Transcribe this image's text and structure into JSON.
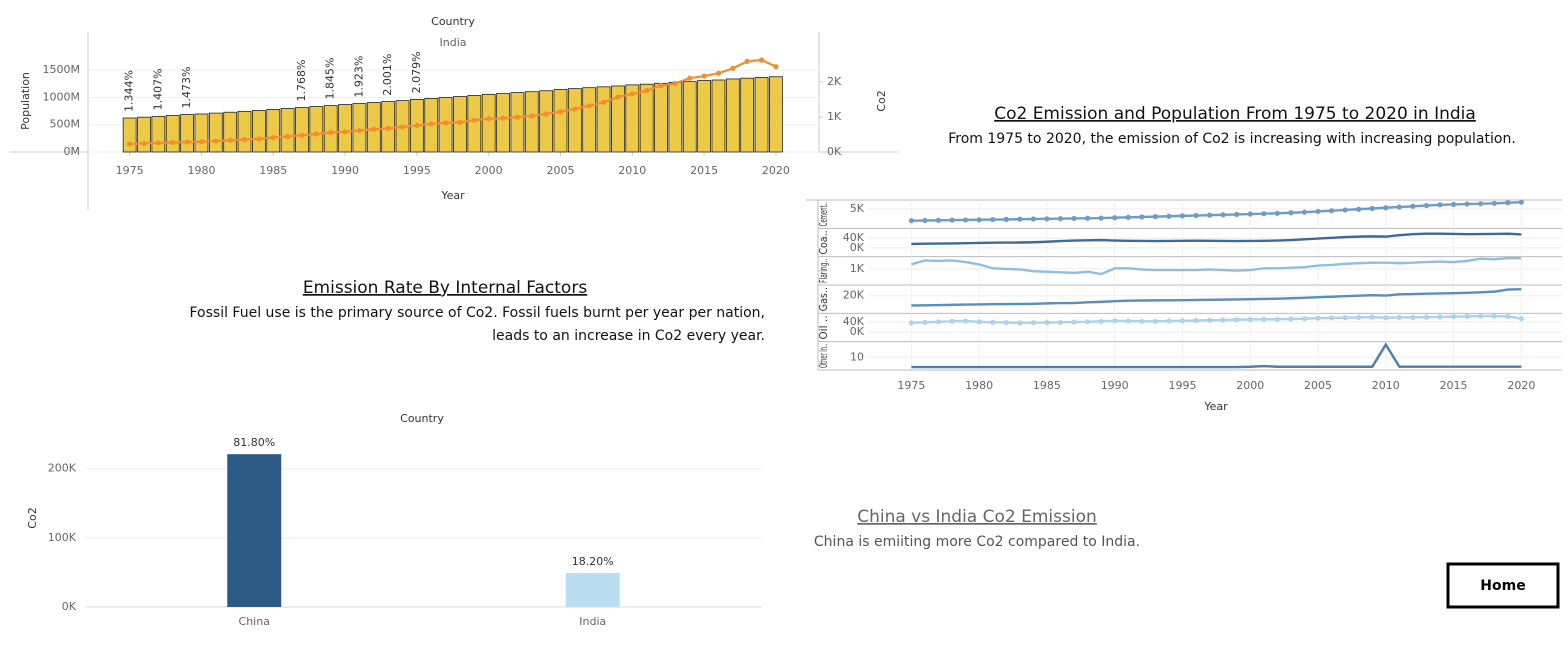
{
  "headline": {
    "title": "Co2 Emission and Population From 1975 to 2020 in India",
    "text": "From 1975 to 2020, the emission of Co2 is increasing with increasing population."
  },
  "factors": {
    "title": "Emission Rate By Internal Factors",
    "lines": [
      "Fossil Fuel use is the primary source of Co2. Fossil fuels burnt per year per nation,",
      "leads to an increase in Co2 every year."
    ]
  },
  "comparison": {
    "title": "China vs India Co2 Emission",
    "text": "China is emiiting more Co2 compared to India."
  },
  "home_button": "Home",
  "chart_data": [
    {
      "type": "combo",
      "title": "Country",
      "subtitle": "India",
      "x_label": "Year",
      "y_label": "Population",
      "y2_label": "Co2",
      "x": [
        1975,
        1976,
        1977,
        1978,
        1979,
        1980,
        1981,
        1982,
        1983,
        1984,
        1985,
        1986,
        1987,
        1988,
        1989,
        1990,
        1991,
        1992,
        1993,
        1994,
        1995,
        1996,
        1997,
        1998,
        1999,
        2000,
        2001,
        2002,
        2003,
        2004,
        2005,
        2006,
        2007,
        2008,
        2009,
        2010,
        2011,
        2012,
        2013,
        2014,
        2015,
        2016,
        2017,
        2018,
        2019,
        2020
      ],
      "series": [
        {
          "name": "Population",
          "type": "bar",
          "color": "#edc948",
          "values": [
            623,
            638,
            654,
            670,
            687,
            697,
            713,
            729,
            745,
            761,
            781,
            798,
            816,
            834,
            852,
            870,
            888,
            906,
            924,
            942,
            964,
            982,
            1000,
            1018,
            1036,
            1057,
            1071,
            1089,
            1106,
            1123,
            1147,
            1162,
            1179,
            1195,
            1211,
            1231,
            1243,
            1259,
            1275,
            1290,
            1310,
            1320,
            1339,
            1353,
            1367,
            1380
          ]
        },
        {
          "name": "Co2",
          "type": "line",
          "axis": "y2",
          "color": "#f28e2b",
          "values": [
            230,
            245,
            260,
            270,
            285,
            295,
            315,
            335,
            355,
            375,
            415,
            445,
            480,
            515,
            560,
            580,
            615,
            650,
            675,
            715,
            760,
            800,
            835,
            850,
            910,
            950,
            965,
            995,
            1030,
            1090,
            1150,
            1230,
            1320,
            1420,
            1570,
            1660,
            1750,
            1900,
            1960,
            2110,
            2170,
            2250,
            2390,
            2590,
            2630,
            2440
          ]
        }
      ],
      "annotations": [
        {
          "x": 1975,
          "value": 1.344,
          "label": "1.344%"
        },
        {
          "x": 1977,
          "value": 1.407,
          "label": "1.407%"
        },
        {
          "x": 1979,
          "value": 1.473,
          "label": "1.473%"
        },
        {
          "x": 1987,
          "value": 1.768,
          "label": "1.768%"
        },
        {
          "x": 1989,
          "value": 1.845,
          "label": "1.845%"
        },
        {
          "x": 1991,
          "value": 1.923,
          "label": "1.923%"
        },
        {
          "x": 1993,
          "value": 2.001,
          "label": "2.001%"
        },
        {
          "x": 1995,
          "value": 2.079,
          "label": "2.079%"
        }
      ],
      "xlim": [
        1972.1,
        2023
      ],
      "xticks": [
        1975,
        1980,
        1985,
        1990,
        1995,
        2000,
        2005,
        2010,
        2015,
        2020
      ],
      "ylim": [
        0,
        2200
      ],
      "yticks": [
        {
          "value": 0,
          "label": "0M"
        },
        {
          "value": 500,
          "label": "500M"
        },
        {
          "value": 1000,
          "label": "1000M"
        },
        {
          "value": 1500,
          "label": "1500M"
        }
      ],
      "y2lim": [
        0,
        3430
      ],
      "y2ticks": [
        {
          "value": 0,
          "label": "0K"
        },
        {
          "value": 1000,
          "label": "1K"
        },
        {
          "value": 2000,
          "label": "2K"
        }
      ],
      "grid": true
    },
    {
      "type": "line",
      "x_label": "Year",
      "x": [
        1975,
        1976,
        1977,
        1978,
        1979,
        1980,
        1981,
        1982,
        1983,
        1984,
        1985,
        1986,
        1987,
        1988,
        1989,
        1990,
        1991,
        1992,
        1993,
        1994,
        1995,
        1996,
        1997,
        1998,
        1999,
        2000,
        2001,
        2002,
        2003,
        2004,
        2005,
        2006,
        2007,
        2008,
        2009,
        2010,
        2011,
        2012,
        2013,
        2014,
        2015,
        2016,
        2017,
        2018,
        2019,
        2020
      ],
      "xlim": [
        1971.8,
        2023
      ],
      "xticks": [
        1975,
        1980,
        1985,
        1990,
        1995,
        2000,
        2005,
        2010,
        2015,
        2020
      ],
      "series": [
        {
          "name": "Cement..",
          "color": "#6d9cc7",
          "markers": true,
          "ylim": [
            0,
            7400
          ],
          "yticks": [
            {
              "value": 5000,
              "label": "5K"
            }
          ],
          "values": [
            1800,
            1850,
            1900,
            1950,
            2000,
            2050,
            2100,
            2150,
            2200,
            2250,
            2300,
            2350,
            2400,
            2450,
            2500,
            2600,
            2700,
            2800,
            2900,
            3000,
            3100,
            3200,
            3300,
            3400,
            3500,
            3600,
            3700,
            3800,
            3950,
            4100,
            4300,
            4500,
            4700,
            4900,
            5100,
            5300,
            5500,
            5700,
            5900,
            6100,
            6200,
            6300,
            6400,
            6500,
            6650,
            6800
          ]
        },
        {
          "name": "Coa..",
          "color": "#3d6a9c",
          "markers": false,
          "ylim": [
            -32000,
            80000
          ],
          "yticks": [
            {
              "value": 0,
              "label": "0K"
            },
            {
              "value": 40000,
              "label": "40K"
            }
          ],
          "values": [
            16000,
            17000,
            17500,
            18000,
            19000,
            20000,
            21000,
            21500,
            22000,
            23000,
            25000,
            28000,
            30000,
            31000,
            32000,
            30000,
            29000,
            28500,
            28000,
            28500,
            29000,
            29500,
            29000,
            28500,
            28000,
            28500,
            29000,
            30000,
            32000,
            35000,
            38000,
            41000,
            44000,
            46000,
            47000,
            46000,
            52000,
            56000,
            58000,
            58000,
            57000,
            56000,
            56500,
            57000,
            58000,
            55000
          ]
        },
        {
          "name": "Flaring..",
          "color": "#8fbfe0",
          "markers": false,
          "ylim": [
            -330,
            2080
          ],
          "yticks": [
            {
              "value": 1000,
              "label": "1K"
            }
          ],
          "values": [
            1400,
            1750,
            1700,
            1750,
            1600,
            1400,
            1050,
            1000,
            950,
            800,
            750,
            700,
            650,
            750,
            550,
            1050,
            1050,
            950,
            900,
            900,
            900,
            900,
            950,
            900,
            850,
            900,
            1050,
            1050,
            1100,
            1150,
            1300,
            1350,
            1450,
            1500,
            1550,
            1550,
            1500,
            1550,
            1600,
            1650,
            1600,
            1700,
            1900,
            1850,
            1950,
            1950
          ]
        },
        {
          "name": "Gas..",
          "color": "#5b8dbd",
          "markers": false,
          "ylim": [
            -4300,
            35700
          ],
          "yticks": [
            {
              "value": 20000,
              "label": "20K"
            }
          ],
          "values": [
            5700,
            6000,
            6300,
            6600,
            7000,
            7300,
            7600,
            7800,
            7900,
            8200,
            8800,
            9200,
            9300,
            10300,
            11000,
            12000,
            12800,
            13000,
            13200,
            13300,
            13500,
            13800,
            14000,
            14300,
            14500,
            15000,
            15300,
            15700,
            16300,
            17000,
            17800,
            18500,
            19300,
            20000,
            20800,
            20300,
            22000,
            22500,
            23000,
            23300,
            23700,
            24300,
            25000,
            26000,
            29000,
            29500
          ]
        },
        {
          "name": "Oil ..",
          "color": "#a9d4ec",
          "markers": true,
          "ylim": [
            -32700,
            72700
          ],
          "yticks": [
            {
              "value": 0,
              "label": "0K"
            },
            {
              "value": 40000,
              "label": "40K"
            }
          ],
          "values": [
            36000,
            38000,
            40000,
            42000,
            43000,
            40000,
            38000,
            37000,
            36000,
            36500,
            37000,
            38000,
            39000,
            40000,
            42000,
            44000,
            43000,
            42000,
            42000,
            43000,
            44000,
            45000,
            46000,
            47000,
            48000,
            49000,
            49500,
            50000,
            51000,
            52000,
            54000,
            55000,
            56000,
            57000,
            58000,
            56000,
            57000,
            57000,
            58000,
            59000,
            60000,
            61000,
            62000,
            62000,
            61000,
            52000
          ]
        },
        {
          "name": "Other In..",
          "color": "#4a7fb0",
          "markers": false,
          "ylim": [
            -2,
            26
          ],
          "yticks": [
            10
          ],
          "values": [
            0,
            0,
            0,
            0,
            0,
            0,
            0,
            0,
            0,
            0,
            0,
            0,
            0,
            0,
            0,
            0,
            0,
            0,
            0,
            0,
            0,
            0,
            0,
            0,
            0,
            0.3,
            1,
            0.3,
            0.3,
            0.3,
            0.3,
            0.3,
            0.3,
            0.3,
            0.3,
            23,
            0.4,
            0.4,
            0.4,
            0.4,
            0.4,
            0.4,
            0.4,
            0.4,
            0.4,
            0.4
          ]
        }
      ]
    },
    {
      "type": "bar",
      "title": "Country",
      "y_label": "Co2",
      "categories": [
        "China",
        "India"
      ],
      "values": [
        221000,
        49200
      ],
      "colors": [
        "#2c5985",
        "#b9ddf1"
      ],
      "shares": [
        81.8,
        18.2
      ],
      "share_labels": [
        "81.80%",
        "18.20%"
      ],
      "ylim": [
        0,
        256000
      ],
      "yticks": [
        {
          "value": 0,
          "label": "0K"
        },
        {
          "value": 100000,
          "label": "100K"
        },
        {
          "value": 200000,
          "label": "200K"
        }
      ],
      "grid": true
    }
  ]
}
